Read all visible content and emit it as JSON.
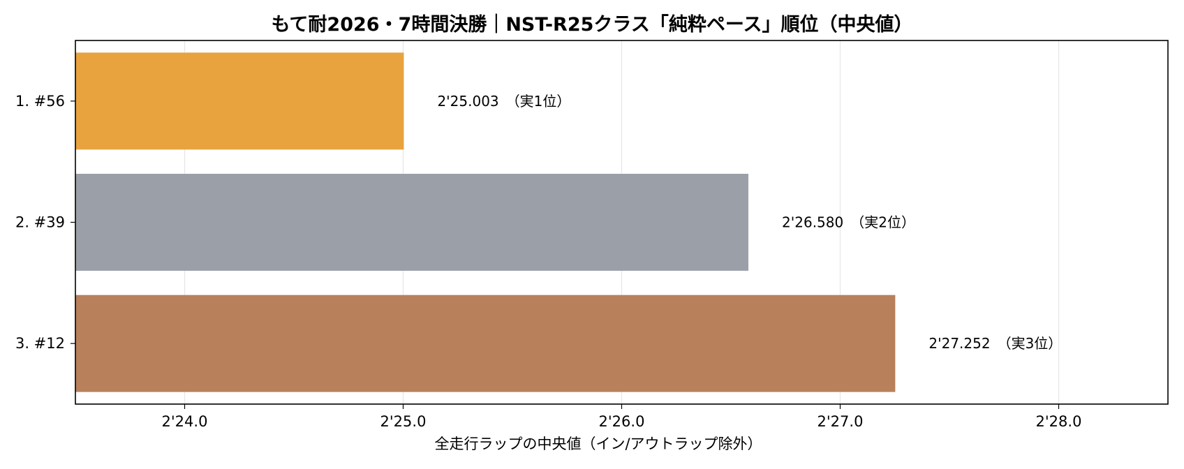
{
  "chart_data": {
    "type": "bar",
    "orientation": "horizontal",
    "title": "もて耐2026・7時間決勝｜NST-R25クラス「純粋ペース」順位（中央値）",
    "xlabel": "全走行ラップの中央値（イン/アウトラップ除外）",
    "ylabel": "",
    "xlim": [
      143.5,
      148.5
    ],
    "xticks": [
      {
        "value": 144,
        "label": "2'24.0"
      },
      {
        "value": 145,
        "label": "2'25.0"
      },
      {
        "value": 146,
        "label": "2'26.0"
      },
      {
        "value": 147,
        "label": "2'27.0"
      },
      {
        "value": 148,
        "label": "2'28.0"
      }
    ],
    "grid": "vertical",
    "categories": [
      "1. #56",
      "2. #39",
      "3. #12"
    ],
    "values": [
      145.003,
      146.58,
      147.252
    ],
    "data_labels": [
      "2'25.003　（実1位）",
      "2'26.580　（実2位）",
      "2'27.252　（実3位）"
    ],
    "colors": [
      "#E8A23E",
      "#9BA0A8",
      "#B8805B"
    ]
  }
}
